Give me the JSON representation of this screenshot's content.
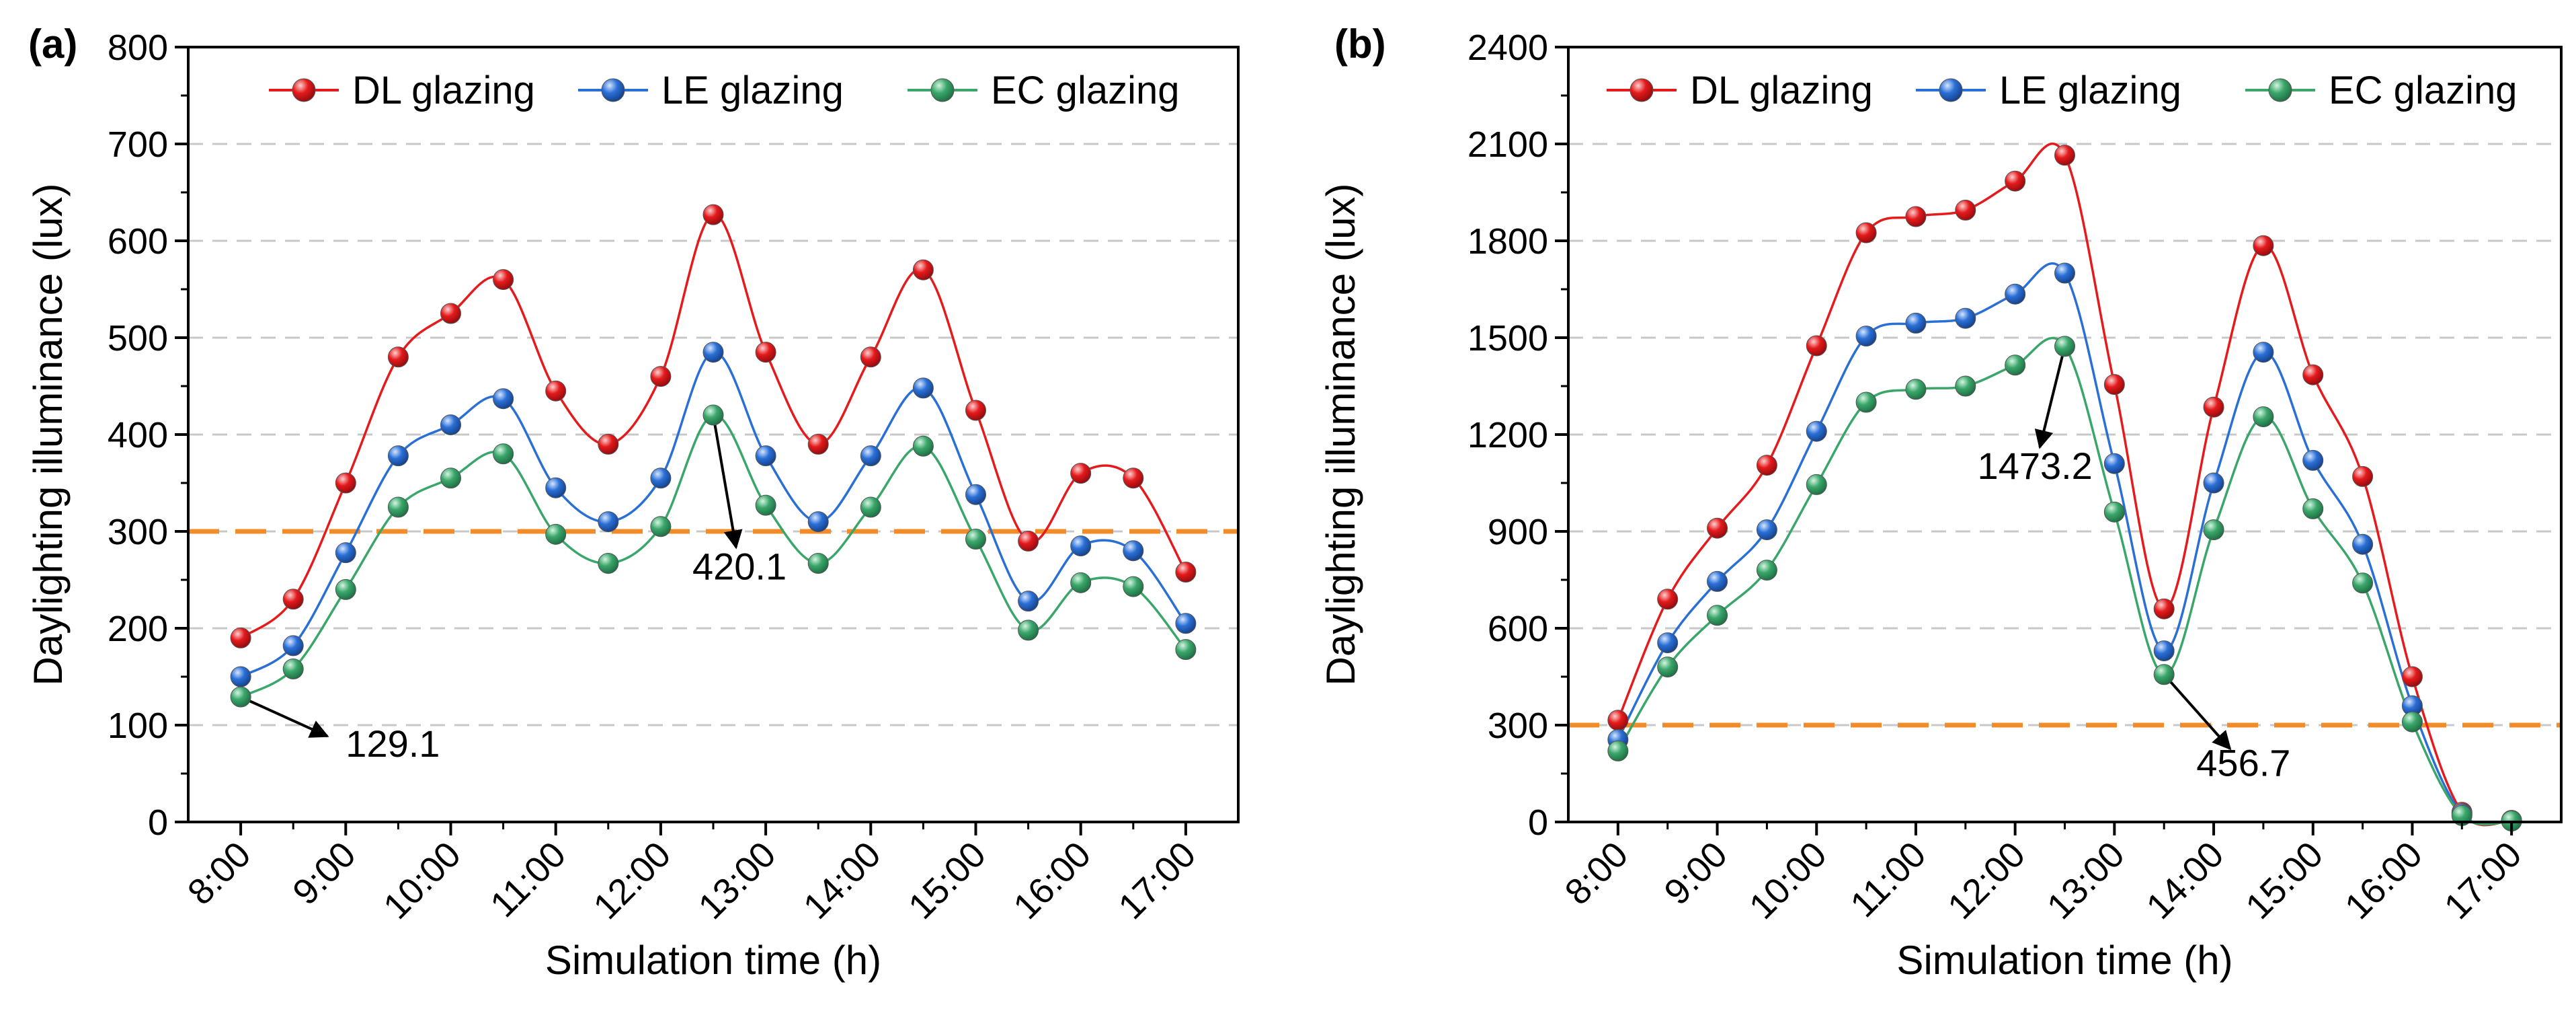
{
  "figure": {
    "panel_count": 2
  },
  "chart_data": [
    {
      "panel_label": "(a)",
      "type": "line",
      "title": "",
      "xlabel": "Simulation time (h)",
      "ylabel": "Daylighting illuminance (lux)",
      "ylim": [
        0,
        800
      ],
      "yticks": [
        0,
        100,
        200,
        300,
        400,
        500,
        600,
        700,
        800
      ],
      "x": [
        8,
        8.5,
        9,
        9.5,
        10,
        10.5,
        11,
        11.5,
        12,
        12.5,
        13,
        13.5,
        14,
        14.5,
        15,
        15.5,
        16,
        16.5,
        17
      ],
      "xlim": [
        7.5,
        17.5
      ],
      "xticks": [
        8,
        9,
        10,
        11,
        12,
        13,
        14,
        15,
        16,
        17
      ],
      "xtick_labels": [
        "8:00",
        "9:00",
        "10:00",
        "11:00",
        "12:00",
        "13:00",
        "14:00",
        "15:00",
        "16:00",
        "17:00"
      ],
      "grid": "horizontal dashed",
      "legend_position": "top",
      "series": [
        {
          "name": "DL glazing",
          "color": "#e41a1c",
          "values": [
            190,
            230,
            350,
            480,
            525,
            560,
            445,
            390,
            460,
            627,
            485,
            390,
            480,
            570,
            425,
            290,
            360,
            355,
            258
          ]
        },
        {
          "name": "LE glazing",
          "color": "#2a6fd6",
          "values": [
            150,
            182,
            278,
            378,
            410,
            437,
            345,
            310,
            355,
            485,
            378,
            310,
            378,
            448,
            338,
            228,
            285,
            280,
            205
          ]
        },
        {
          "name": "EC glazing",
          "color": "#3aa66a",
          "values": [
            129.1,
            158,
            240,
            325,
            355,
            380,
            297,
            267,
            305,
            420.1,
            327,
            267,
            325,
            388,
            292,
            198,
            247,
            243,
            178
          ]
        }
      ],
      "threshold": {
        "value": 300,
        "color": "#f28c28"
      },
      "annotations": [
        {
          "text": "129.1",
          "x": 8,
          "y": 129.1,
          "text_x": 9.0,
          "text_y": 80
        },
        {
          "text": "420.1",
          "x": 12.5,
          "y": 420.1,
          "text_x": 12.75,
          "text_y": 263
        }
      ]
    },
    {
      "panel_label": "(b)",
      "type": "line",
      "title": "",
      "xlabel": "Simulation time (h)",
      "ylabel": "Daylighting illuminance (lux)",
      "ylim": [
        0,
        2400
      ],
      "yticks": [
        0,
        300,
        600,
        900,
        1200,
        1500,
        1800,
        2100,
        2400
      ],
      "x": [
        8,
        8.5,
        9,
        9.5,
        10,
        10.5,
        11,
        11.5,
        12,
        12.5,
        13,
        13.5,
        14,
        14.5,
        15,
        15.5,
        16,
        16.5,
        17
      ],
      "xlim": [
        7.5,
        17.5
      ],
      "xticks": [
        8,
        9,
        10,
        11,
        12,
        13,
        14,
        15,
        16,
        17
      ],
      "xtick_labels": [
        "8:00",
        "9:00",
        "10:00",
        "11:00",
        "12:00",
        "13:00",
        "14:00",
        "15:00",
        "16:00",
        "17:00"
      ],
      "grid": "horizontal dashed",
      "legend_position": "top",
      "series": [
        {
          "name": "DL glazing",
          "color": "#e41a1c",
          "values": [
            315,
            690,
            910,
            1105,
            1475,
            1825,
            1875,
            1895,
            1985,
            2065,
            1355,
            660,
            1285,
            1785,
            1385,
            1070,
            450,
            30,
            5
          ]
        },
        {
          "name": "LE glazing",
          "color": "#2a6fd6",
          "values": [
            255,
            555,
            745,
            905,
            1210,
            1505,
            1545,
            1560,
            1635,
            1700,
            1110,
            530,
            1050,
            1455,
            1120,
            860,
            360,
            25,
            4
          ]
        },
        {
          "name": "EC glazing",
          "color": "#3aa66a",
          "values": [
            220,
            480,
            640,
            780,
            1045,
            1300,
            1340,
            1350,
            1415,
            1473.2,
            960,
            456.7,
            905,
            1255,
            970,
            740,
            310,
            20,
            3
          ]
        }
      ],
      "threshold": {
        "value": 300,
        "color": "#f28c28"
      },
      "annotations": [
        {
          "text": "1473.2",
          "x": 12.5,
          "y": 1473.2,
          "text_x": 12.2,
          "text_y": 1100
        },
        {
          "text": "456.7",
          "x": 13.5,
          "y": 456.7,
          "text_x": 14.3,
          "text_y": 180
        }
      ]
    }
  ]
}
